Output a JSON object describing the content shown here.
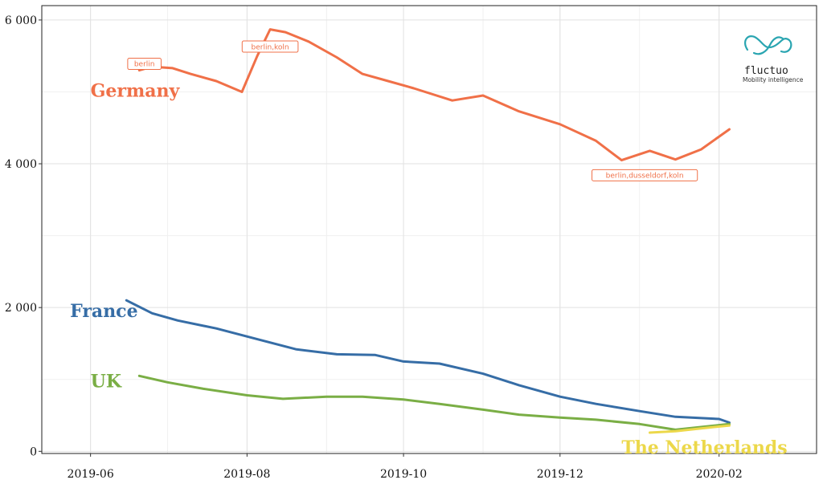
{
  "chart_data": {
    "type": "line",
    "title": "",
    "xlabel": "",
    "ylabel": "",
    "grid": true,
    "x_ticks": [
      "2019-06",
      "2019-08",
      "2019-10",
      "2019-12",
      "2020-02"
    ],
    "y_ticks": [
      {
        "value": 0,
        "label": "0"
      },
      {
        "value": 2000,
        "label": "2 000"
      },
      {
        "value": 4000,
        "label": "4 000"
      },
      {
        "value": 6000,
        "label": "6 000"
      }
    ],
    "xlim": [
      "2019-05-13",
      "2020-03-10"
    ],
    "ylim": [
      -30,
      6200
    ],
    "series": [
      {
        "name": "Germany",
        "color": "#f07048",
        "x": [
          "2019-06-20",
          "2019-06-25",
          "2019-07-03",
          "2019-07-10",
          "2019-07-20",
          "2019-07-30",
          "2019-08-05",
          "2019-08-10",
          "2019-08-16",
          "2019-08-25",
          "2019-09-05",
          "2019-09-15",
          "2019-09-25",
          "2019-10-05",
          "2019-10-20",
          "2019-11-01",
          "2019-11-15",
          "2019-12-01",
          "2019-12-15",
          "2019-12-25",
          "2020-01-05",
          "2020-01-15",
          "2020-01-25",
          "2020-02-05"
        ],
        "values": [
          5300,
          5350,
          5330,
          5250,
          5150,
          5000,
          5500,
          5870,
          5830,
          5700,
          5480,
          5250,
          5150,
          5050,
          4880,
          4950,
          4730,
          4550,
          4320,
          4050,
          4180,
          4060,
          4200,
          4480
        ]
      },
      {
        "name": "France",
        "color": "#366da6",
        "x": [
          "2019-06-15",
          "2019-06-25",
          "2019-07-05",
          "2019-07-20",
          "2019-08-05",
          "2019-08-20",
          "2019-09-05",
          "2019-09-20",
          "2019-10-01",
          "2019-10-15",
          "2019-11-01",
          "2019-11-15",
          "2019-12-01",
          "2019-12-15",
          "2020-01-01",
          "2020-01-15",
          "2020-02-01",
          "2020-02-05"
        ],
        "values": [
          2100,
          1920,
          1820,
          1710,
          1560,
          1420,
          1350,
          1340,
          1250,
          1220,
          1080,
          920,
          760,
          660,
          560,
          480,
          450,
          400
        ]
      },
      {
        "name": "UK",
        "color": "#7aae45",
        "x": [
          "2019-06-20",
          "2019-07-01",
          "2019-07-15",
          "2019-08-01",
          "2019-08-15",
          "2019-09-01",
          "2019-09-15",
          "2019-10-01",
          "2019-10-15",
          "2019-11-01",
          "2019-11-15",
          "2019-12-01",
          "2019-12-15",
          "2020-01-01",
          "2020-01-15",
          "2020-02-05"
        ],
        "values": [
          1050,
          960,
          870,
          780,
          730,
          760,
          760,
          720,
          660,
          580,
          510,
          470,
          440,
          380,
          300,
          380
        ]
      },
      {
        "name": "The Netherlands",
        "color": "#ecd84a",
        "x": [
          "2020-01-05",
          "2020-01-15",
          "2020-01-25",
          "2020-02-05"
        ],
        "values": [
          260,
          280,
          320,
          360
        ]
      }
    ],
    "annotations": [
      {
        "text": "berlin",
        "x": "2019-06-22",
        "y": 5390,
        "series": "Germany"
      },
      {
        "text": "berlin,koln",
        "x": "2019-08-10",
        "y": 5630,
        "series": "Germany"
      },
      {
        "text": "berlin,dusseldorf,koln",
        "x": "2020-01-03",
        "y": 3840,
        "series": "Germany"
      }
    ]
  },
  "logo": {
    "name": "fluctuo",
    "tagline": "Mobility intelligence",
    "color": "#2aa5b1"
  }
}
